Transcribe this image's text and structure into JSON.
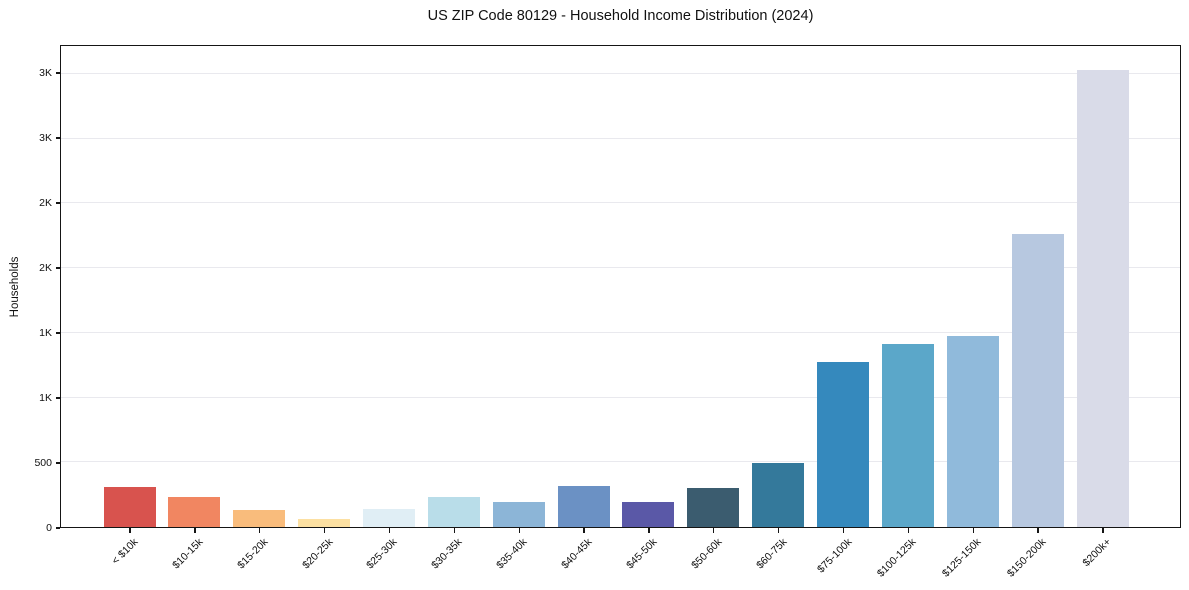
{
  "chart_data": {
    "type": "bar",
    "title": "US ZIP Code 80129 - Household Income Distribution (2024)",
    "xlabel": "",
    "ylabel": "Households",
    "categories": [
      "< $10k",
      "$10-15k",
      "$15-20k",
      "$20-25k",
      "$25-30k",
      "$30-35k",
      "$35-40k",
      "$40-45k",
      "$45-50k",
      "$50-60k",
      "$60-75k",
      "$75-100k",
      "$100-125k",
      "$125-150k",
      "$150-200k",
      "$200k+"
    ],
    "values": [
      310,
      232,
      128,
      62,
      143,
      230,
      196,
      318,
      192,
      302,
      495,
      1278,
      1415,
      1477,
      2265,
      3530
    ],
    "bar_colors": [
      "#d8534e",
      "#f18661",
      "#f9bc7c",
      "#fce0a2",
      "#e0eef5",
      "#b9dde9",
      "#8cb5d7",
      "#6b91c4",
      "#5a58a7",
      "#3b5c6f",
      "#34799b",
      "#3589bd",
      "#5ba7c9",
      "#90badb",
      "#b7c8e0",
      "#d9dbe8"
    ],
    "yticks": {
      "values": [
        0,
        500,
        1000,
        1500,
        2000,
        2500,
        3000,
        3500
      ],
      "labels": [
        "0",
        "500",
        "1K",
        "1K",
        "2K",
        "2K",
        "3K",
        "3K"
      ]
    },
    "ylim": [
      0,
      3715
    ],
    "grid": "horizontal",
    "legend": "none",
    "plot_border_color": "#151515",
    "gridline_color": "#e9e9ee",
    "background_color": "#ffffff"
  }
}
